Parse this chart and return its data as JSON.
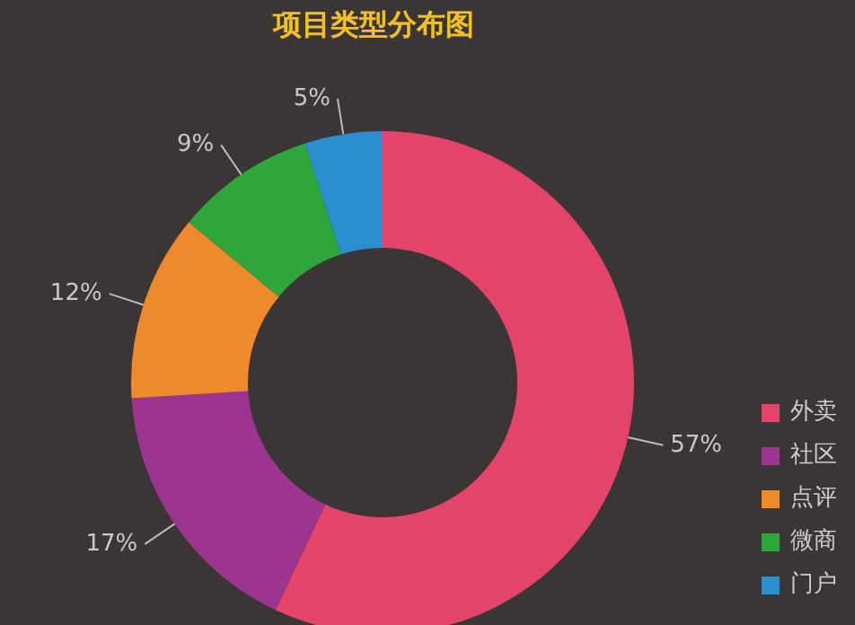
{
  "chart_data": {
    "type": "donut",
    "title": "项目类型分布图",
    "categories": [
      "外卖",
      "社区",
      "点评",
      "微商",
      "门户"
    ],
    "values": [
      57,
      17,
      12,
      9,
      5
    ],
    "colors": [
      "#e4436a",
      "#9c3590",
      "#ee8a2b",
      "#2fa63c",
      "#2a8fcc"
    ],
    "value_labels": [
      "57%",
      "17%",
      "12%",
      "9%",
      "5%"
    ],
    "legend": "bottom right"
  }
}
